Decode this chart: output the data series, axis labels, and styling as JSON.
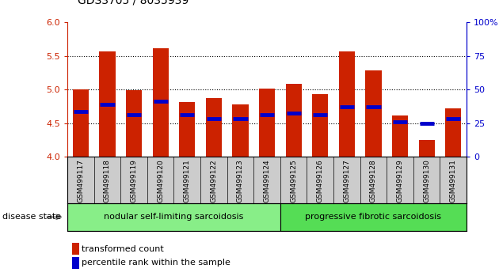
{
  "title": "GDS3705 / 8035939",
  "samples": [
    "GSM499117",
    "GSM499118",
    "GSM499119",
    "GSM499120",
    "GSM499121",
    "GSM499122",
    "GSM499123",
    "GSM499124",
    "GSM499125",
    "GSM499126",
    "GSM499127",
    "GSM499128",
    "GSM499129",
    "GSM499130",
    "GSM499131"
  ],
  "bar_heights": [
    5.0,
    5.57,
    4.99,
    5.61,
    4.82,
    4.87,
    4.78,
    5.02,
    5.08,
    4.93,
    5.57,
    5.28,
    4.61,
    4.25,
    4.72
  ],
  "percentile_values": [
    4.67,
    4.78,
    4.63,
    4.83,
    4.63,
    4.57,
    4.57,
    4.63,
    4.65,
    4.63,
    4.75,
    4.75,
    4.52,
    4.5,
    4.57
  ],
  "bar_bottom": 4.0,
  "ylim_left": [
    4.0,
    6.0
  ],
  "ylim_right": [
    0,
    100
  ],
  "yticks_left": [
    4.0,
    4.5,
    5.0,
    5.5,
    6.0
  ],
  "yticks_right": [
    0,
    25,
    50,
    75,
    100
  ],
  "bar_color": "#cc2200",
  "percentile_color": "#0000cc",
  "group1_label": "nodular self-limiting sarcoidosis",
  "group2_label": "progressive fibrotic sarcoidosis",
  "group1_count": 8,
  "group2_count": 7,
  "group1_color": "#88ee88",
  "group2_color": "#55dd55",
  "disease_state_label": "disease state",
  "legend_bar_label": "transformed count",
  "legend_pct_label": "percentile rank within the sample",
  "bar_color_legend": "#cc2200",
  "percentile_color_legend": "#0000cc",
  "xlabel_color": "#cc2200",
  "right_axis_color": "#0000cc",
  "grid_color": "#000000",
  "sample_box_color": "#cccccc",
  "spine_color": "#000000"
}
